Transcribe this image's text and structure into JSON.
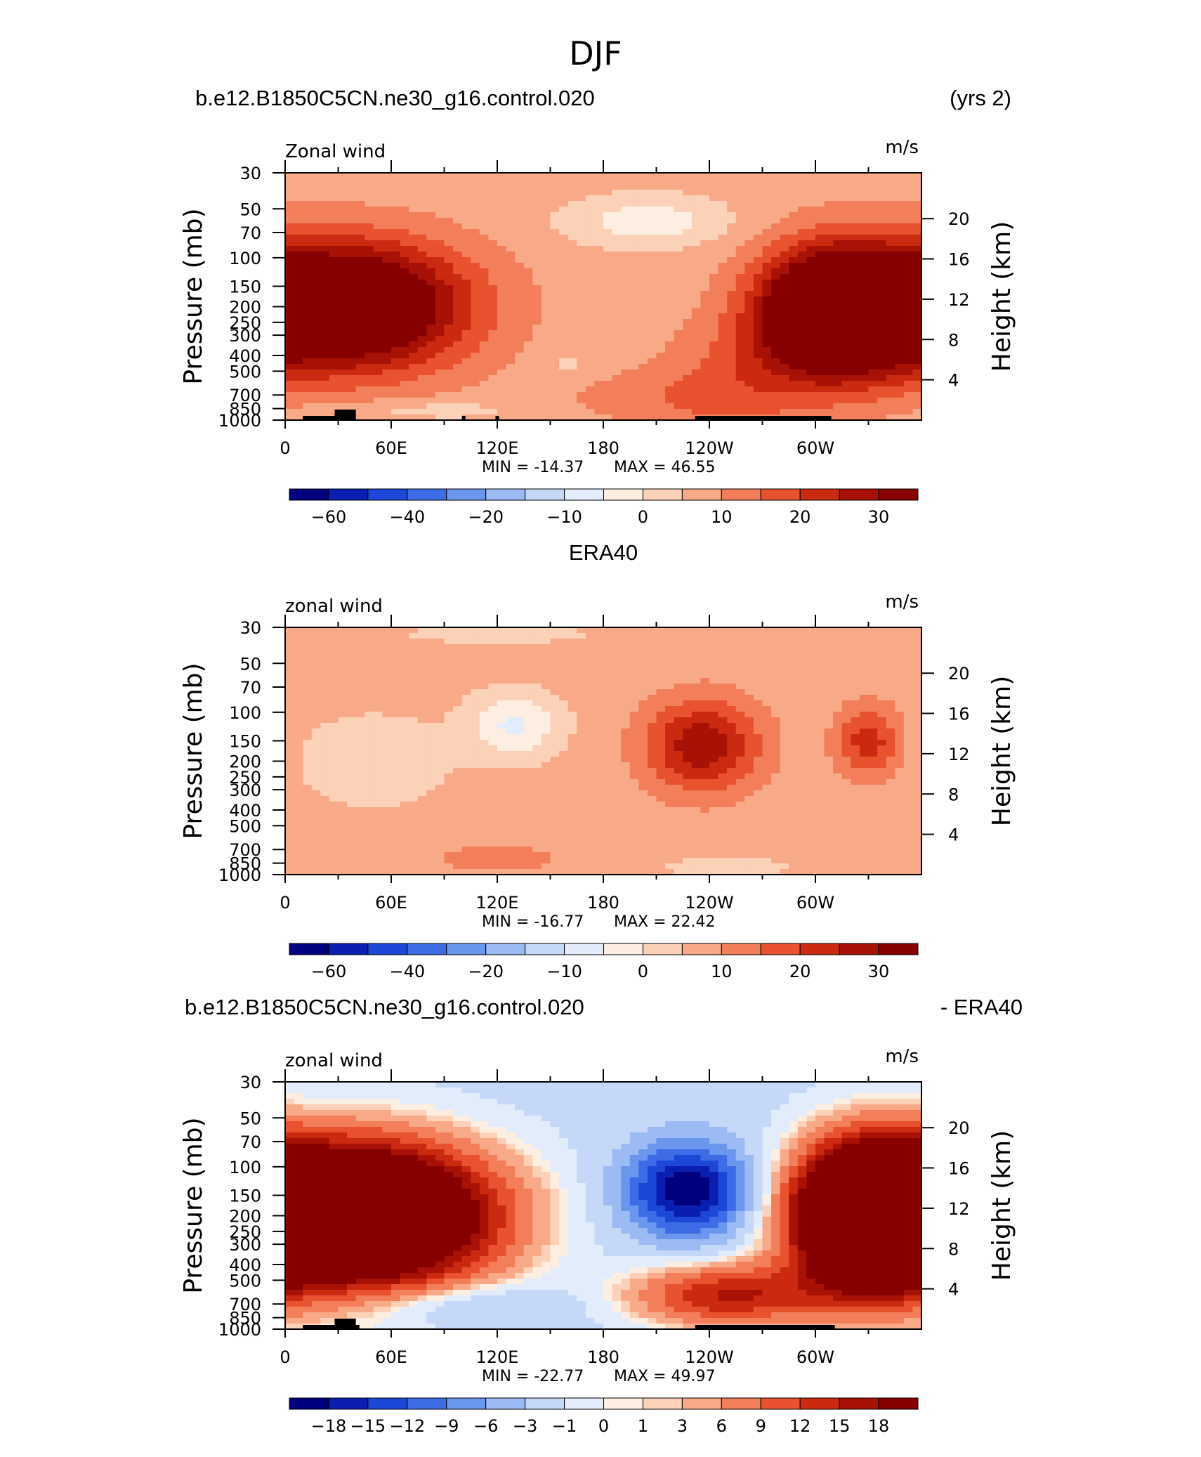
{
  "title": "DJF",
  "panels": [
    {
      "header_left": "b.e12.B1850C5CN.ne30_g16.control.020",
      "header_right": "(yrs 2)",
      "header_center": "",
      "variable_label": "Zonal wind",
      "units": "m/s",
      "ylabel_left": "Pressure (mb)",
      "ylabel_right": "Height (km)",
      "min_label": "MIN = -14.37",
      "max_label": "MAX = 46.55",
      "colorbar_labels": [
        "-60",
        "-40",
        "-20",
        "-10",
        "0",
        "10",
        "20",
        "30"
      ],
      "colorbar_label_slots": [
        1,
        3,
        5,
        7,
        9,
        11,
        13,
        15
      ]
    },
    {
      "header_left": "",
      "header_right": "",
      "header_center": "ERA40",
      "variable_label": "zonal wind",
      "units": "m/s",
      "ylabel_left": "Pressure (mb)",
      "ylabel_right": "Height (km)",
      "min_label": "MIN = -16.77",
      "max_label": "MAX = 22.42",
      "colorbar_labels": [
        "-60",
        "-40",
        "-20",
        "-10",
        "0",
        "10",
        "20",
        "30"
      ],
      "colorbar_label_slots": [
        1,
        3,
        5,
        7,
        9,
        11,
        13,
        15
      ]
    },
    {
      "header_left": "b.e12.B1850C5CN.ne30_g16.control.020",
      "header_right": "- ERA40",
      "header_center": "",
      "variable_label": "zonal wind",
      "units": "m/s",
      "ylabel_left": "Pressure (mb)",
      "ylabel_right": "Height (km)",
      "min_label": "MIN = -22.77",
      "max_label": "MAX = 49.97",
      "colorbar_labels": [
        "-18",
        "-15",
        "-12",
        "-9",
        "-6",
        "-3",
        "-1",
        "0",
        "1",
        "3",
        "6",
        "9",
        "12",
        "15",
        "18"
      ],
      "colorbar_label_slots": [
        1,
        2,
        3,
        4,
        5,
        6,
        7,
        8,
        9,
        10,
        11,
        12,
        13,
        14,
        15
      ]
    }
  ],
  "colors": {
    "blues": [
      "#00007f",
      "#0a1fb0",
      "#1d47d6",
      "#3d6ce6",
      "#6b96ee",
      "#9cbaf3",
      "#c5d8f8",
      "#e2ecfb"
    ],
    "reds": [
      "#fdeee2",
      "#fbd1b8",
      "#f8aa88",
      "#f27e5a",
      "#e8522e",
      "#cc2a10",
      "#a81105",
      "#870000"
    ],
    "topography": "#000000"
  },
  "chart_data": [
    {
      "type": "heatmap",
      "title": "b.e12.B1850C5CN.ne30_g16.control.020",
      "subtitle": "(yrs 2)",
      "variable": "Zonal wind",
      "units": "m/s",
      "xlabel": "",
      "ylabel": "Pressure (mb)",
      "ylabel_right": "Height (km)",
      "x_ticks": [
        "0",
        "60E",
        "120E",
        "180",
        "120W",
        "60W"
      ],
      "x_tick_values": [
        0,
        60,
        120,
        180,
        240,
        300
      ],
      "xlim": [
        0,
        360
      ],
      "y_ticks": [
        "30",
        "50",
        "70",
        "100",
        "150",
        "200",
        "250",
        "300",
        "400",
        "500",
        "700",
        "850",
        "1000"
      ],
      "y_tick_values": [
        30,
        50,
        70,
        100,
        150,
        200,
        250,
        300,
        400,
        500,
        700,
        850,
        1000
      ],
      "ylim": [
        1000,
        30
      ],
      "y_scale": "log",
      "y_right_ticks": [
        "20",
        "16",
        "12",
        "8",
        "4"
      ],
      "y_right_values": [
        20,
        16,
        12,
        8,
        4
      ],
      "contour_levels": [
        -70,
        -60,
        -50,
        -40,
        -30,
        -20,
        -15,
        -10,
        -5,
        0,
        5,
        10,
        15,
        20,
        25,
        30,
        35
      ],
      "min": -14.37,
      "max": 46.55,
      "background": 2,
      "features": [
        {
          "lon": 30,
          "p": 200,
          "dlon": 70,
          "dlnp": 0.9,
          "amp": 44
        },
        {
          "lon": 310,
          "p": 220,
          "dlon": 42,
          "dlnp": 0.9,
          "amp": 46
        },
        {
          "lon": 255,
          "p": 550,
          "dlon": 45,
          "dlnp": 0.8,
          "amp": 8
        },
        {
          "lon": 210,
          "p": 750,
          "dlon": 60,
          "dlnp": 0.4,
          "amp": 5
        },
        {
          "lon": 205,
          "p": 60,
          "dlon": 45,
          "dlnp": 0.35,
          "amp": -10
        },
        {
          "lon": 160,
          "p": 450,
          "dlon": 10,
          "dlnp": 0.2,
          "amp": -4
        },
        {
          "lon": 80,
          "p": 870,
          "dlon": 60,
          "dlnp": 0.15,
          "amp": -5
        }
      ],
      "topography": [
        [
          10,
          34
        ],
        [
          28,
          40
        ],
        [
          100,
          102
        ],
        [
          119,
          121
        ],
        [
          232,
          309
        ]
      ]
    },
    {
      "type": "heatmap",
      "title": "ERA40",
      "variable": "zonal wind",
      "units": "m/s",
      "xlabel": "",
      "ylabel": "Pressure (mb)",
      "ylabel_right": "Height (km)",
      "x_ticks": [
        "0",
        "60E",
        "120E",
        "180",
        "120W",
        "60W"
      ],
      "x_tick_values": [
        0,
        60,
        120,
        180,
        240,
        300
      ],
      "xlim": [
        0,
        360
      ],
      "y_ticks": [
        "30",
        "50",
        "70",
        "100",
        "150",
        "200",
        "250",
        "300",
        "400",
        "500",
        "700",
        "850",
        "1000"
      ],
      "y_tick_values": [
        30,
        50,
        70,
        100,
        150,
        200,
        250,
        300,
        400,
        500,
        700,
        850,
        1000
      ],
      "ylim": [
        1000,
        30
      ],
      "y_scale": "log",
      "y_right_ticks": [
        "20",
        "16",
        "12",
        "8",
        "4"
      ],
      "y_right_values": [
        20,
        16,
        12,
        8,
        4
      ],
      "contour_levels": [
        -70,
        -60,
        -50,
        -40,
        -30,
        -20,
        -15,
        -10,
        -5,
        0,
        5,
        10,
        15,
        20,
        25,
        30,
        35
      ],
      "min": -16.77,
      "max": 22.42,
      "background": 2,
      "features": [
        {
          "lon": 236,
          "p": 160,
          "dlon": 32,
          "dlnp": 0.65,
          "amp": 22
        },
        {
          "lon": 330,
          "p": 150,
          "dlon": 18,
          "dlnp": 0.5,
          "amp": 16
        },
        {
          "lon": 130,
          "p": 120,
          "dlon": 25,
          "dlnp": 0.45,
          "amp": -13
        },
        {
          "lon": 50,
          "p": 200,
          "dlon": 45,
          "dlnp": 0.7,
          "amp": -5
        },
        {
          "lon": 120,
          "p": 800,
          "dlon": 45,
          "dlnp": 0.25,
          "amp": 5
        },
        {
          "lon": 250,
          "p": 900,
          "dlon": 40,
          "dlnp": 0.2,
          "amp": -4
        },
        {
          "lon": 120,
          "p": 33,
          "dlon": 60,
          "dlnp": 0.15,
          "amp": -4
        }
      ],
      "topography": []
    },
    {
      "type": "heatmap",
      "title": "b.e12.B1850C5CN.ne30_g16.control.020 - ERA40",
      "variable": "zonal wind",
      "units": "m/s",
      "xlabel": "",
      "ylabel": "Pressure (mb)",
      "ylabel_right": "Height (km)",
      "x_ticks": [
        "0",
        "60E",
        "120E",
        "180",
        "120W",
        "60W"
      ],
      "x_tick_values": [
        0,
        60,
        120,
        180,
        240,
        300
      ],
      "xlim": [
        0,
        360
      ],
      "y_ticks": [
        "30",
        "50",
        "70",
        "100",
        "150",
        "200",
        "250",
        "300",
        "400",
        "500",
        "700",
        "850",
        "1000"
      ],
      "y_tick_values": [
        30,
        50,
        70,
        100,
        150,
        200,
        250,
        300,
        400,
        500,
        700,
        850,
        1000
      ],
      "ylim": [
        1000,
        30
      ],
      "y_scale": "log",
      "y_right_ticks": [
        "20",
        "16",
        "12",
        "8",
        "4"
      ],
      "y_right_values": [
        20,
        16,
        12,
        8,
        4
      ],
      "contour_levels": [
        -21,
        -18,
        -15,
        -12,
        -9,
        -6,
        -3,
        -1,
        0,
        1,
        3,
        6,
        9,
        12,
        15,
        18,
        21
      ],
      "min": -22.77,
      "max": 49.97,
      "background": -4,
      "features": [
        {
          "lon": 40,
          "p": 200,
          "dlon": 75,
          "dlnp": 1.0,
          "amp": 45
        },
        {
          "lon": 330,
          "p": 200,
          "dlon": 40,
          "dlnp": 1.0,
          "amp": 42
        },
        {
          "lon": 228,
          "p": 140,
          "dlon": 35,
          "dlnp": 0.65,
          "amp": -20
        },
        {
          "lon": 250,
          "p": 620,
          "dlon": 55,
          "dlnp": 0.45,
          "amp": 16
        },
        {
          "lon": 95,
          "p": 700,
          "dlon": 60,
          "dlnp": 0.3,
          "amp": -5
        }
      ],
      "topography": [
        [
          10,
          34
        ],
        [
          28,
          42
        ],
        [
          232,
          311
        ]
      ]
    }
  ]
}
